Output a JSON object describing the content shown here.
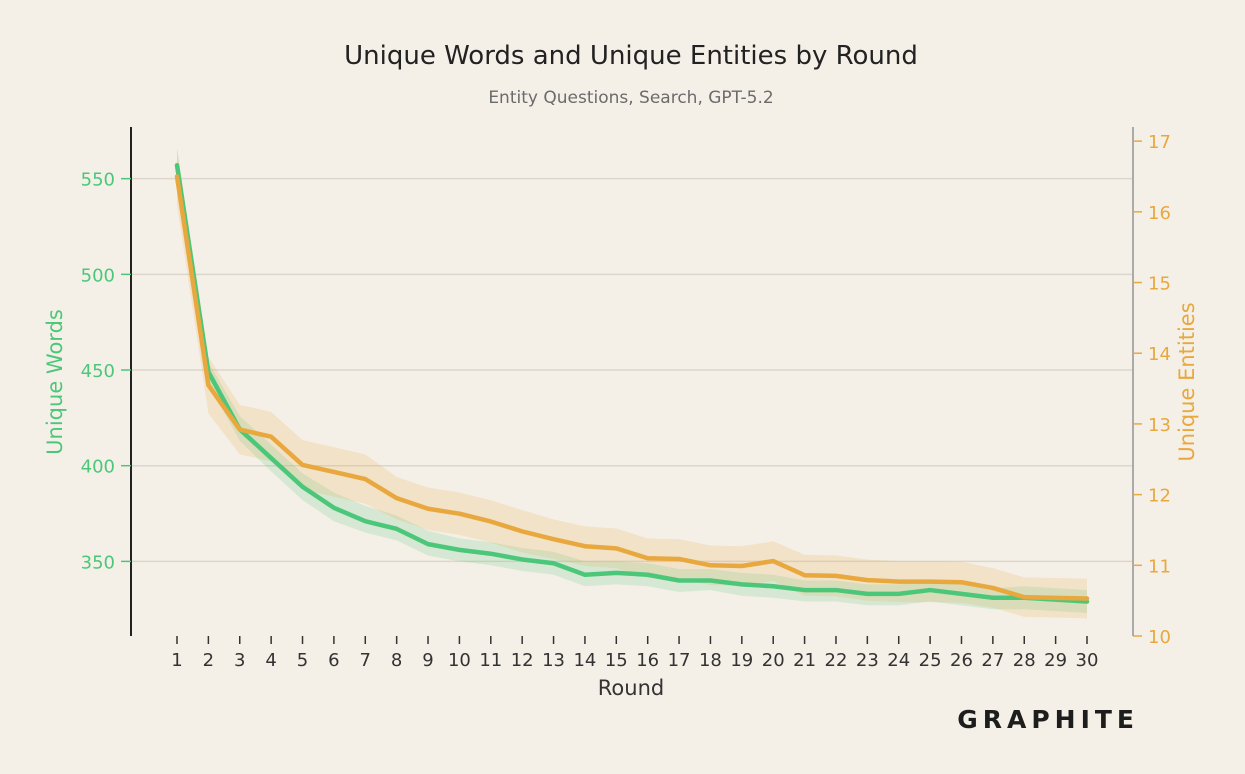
{
  "chart_data": {
    "type": "line",
    "title": "Unique Words and Unique Entities by Round",
    "subtitle": "Entity Questions, Search, GPT-5.2",
    "xlabel": "Round",
    "ylabel_left": "Unique Words",
    "ylabel_right": "Unique Entities",
    "x": [
      1,
      2,
      3,
      4,
      5,
      6,
      7,
      8,
      9,
      10,
      11,
      12,
      13,
      14,
      15,
      16,
      17,
      18,
      19,
      20,
      21,
      22,
      23,
      24,
      25,
      26,
      27,
      28,
      29,
      30
    ],
    "y_left_ticks": [
      350,
      400,
      450,
      500,
      550
    ],
    "y_right_ticks": [
      10,
      11,
      12,
      13,
      14,
      15,
      16,
      17
    ],
    "ylim_left": [
      311,
      577
    ],
    "ylim_right": [
      10,
      17.2
    ],
    "grid": "horizontal",
    "series": [
      {
        "name": "Unique Words",
        "axis": "left",
        "color": "#4cc77a",
        "values": [
          557,
          449,
          419,
          404,
          389,
          378,
          371,
          367,
          359,
          356,
          354,
          351,
          349,
          343,
          344,
          343,
          340,
          340,
          338,
          337,
          335,
          335,
          333,
          333,
          335,
          333,
          331,
          331,
          330,
          329
        ],
        "upper": [
          566,
          454,
          426,
          411,
          396,
          386,
          379,
          374,
          366,
          362,
          360,
          357,
          355,
          350,
          350,
          349,
          346,
          346,
          344,
          343,
          340,
          340,
          338,
          338,
          340,
          338,
          336,
          337,
          336,
          335
        ],
        "lower": [
          550,
          443,
          413,
          397,
          382,
          371,
          365,
          361,
          353,
          350,
          348,
          345,
          343,
          337,
          338,
          337,
          334,
          335,
          332,
          331,
          329,
          329,
          327,
          327,
          329,
          327,
          325,
          325,
          324,
          323
        ]
      },
      {
        "name": "Unique Entities",
        "axis": "right",
        "color": "#e8a83e",
        "values": [
          16.5,
          13.55,
          12.92,
          12.82,
          12.42,
          12.32,
          12.22,
          11.95,
          11.8,
          11.73,
          11.62,
          11.48,
          11.37,
          11.27,
          11.24,
          11.1,
          11.09,
          11.0,
          10.99,
          11.06,
          10.86,
          10.85,
          10.79,
          10.77,
          10.77,
          10.76,
          10.68,
          10.55,
          10.54,
          10.53
        ],
        "upper": [
          16.9,
          13.95,
          13.27,
          13.17,
          12.77,
          12.67,
          12.57,
          12.25,
          12.1,
          12.03,
          11.92,
          11.78,
          11.65,
          11.55,
          11.52,
          11.38,
          11.37,
          11.28,
          11.27,
          11.34,
          11.15,
          11.14,
          11.08,
          11.06,
          11.06,
          11.05,
          10.96,
          10.83,
          10.82,
          10.81
        ],
        "lower": [
          16.1,
          13.15,
          12.57,
          12.47,
          12.07,
          11.97,
          11.87,
          11.65,
          11.5,
          11.43,
          11.32,
          11.18,
          11.09,
          10.99,
          10.96,
          10.82,
          10.81,
          10.72,
          10.71,
          10.78,
          10.57,
          10.56,
          10.5,
          10.48,
          10.48,
          10.47,
          10.4,
          10.27,
          10.26,
          10.25
        ]
      }
    ]
  },
  "logo": {
    "text": "GRAPHITE"
  }
}
